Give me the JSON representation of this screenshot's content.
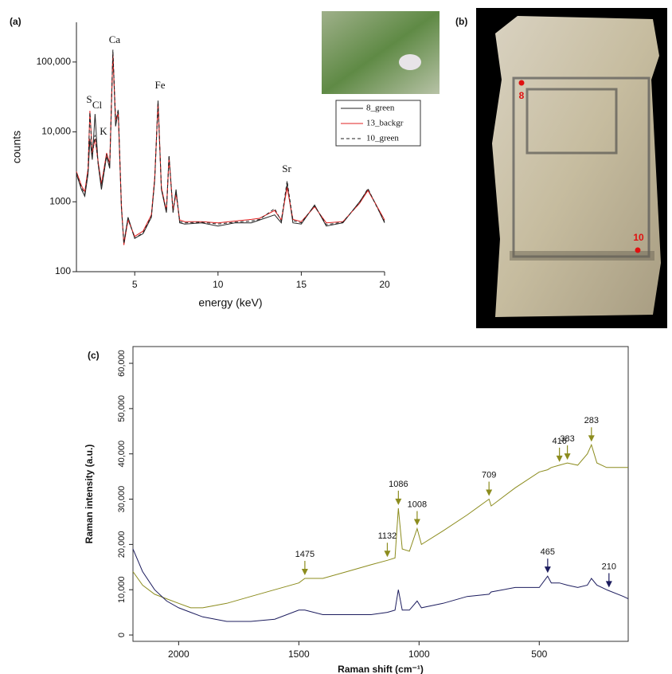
{
  "labels": {
    "a": "(a)",
    "b": "(b)",
    "c": "(c)"
  },
  "photo_markers": [
    "8",
    "10"
  ],
  "chart_data": [
    {
      "type": "line",
      "ylog": true,
      "xlabel": "energy (keV)",
      "ylabel": "counts",
      "xlim": [
        1.5,
        20
      ],
      "ylim": [
        100,
        370000
      ],
      "xticks": [
        5,
        10,
        15,
        20
      ],
      "yticks": [
        100,
        1000,
        {
          "value": 10000,
          "label": "10,000"
        },
        {
          "value": 100000,
          "label": "100,000"
        }
      ],
      "annotations": [
        "S",
        "Cl",
        "K",
        "Ca",
        "Fe",
        "Sr"
      ],
      "legend": "upper right",
      "x": [
        1.5,
        1.8,
        2.0,
        2.2,
        2.31,
        2.45,
        2.62,
        2.8,
        3.0,
        3.31,
        3.5,
        3.69,
        3.85,
        4.01,
        4.2,
        4.35,
        4.6,
        5.0,
        5.5,
        6.0,
        6.2,
        6.4,
        6.6,
        6.9,
        7.06,
        7.3,
        7.48,
        7.7,
        8.0,
        9.0,
        10.0,
        11.0,
        12.0,
        12.5,
        13.4,
        13.8,
        14.15,
        14.5,
        15.0,
        15.8,
        16.5,
        17.5,
        18.5,
        19.0,
        19.5,
        20.0
      ],
      "series": [
        {
          "name": "8_green",
          "color": "#222222",
          "dash": false,
          "values": [
            2500,
            1500,
            1200,
            2500,
            8000,
            4000,
            18000,
            3500,
            1500,
            4500,
            3000,
            140000,
            12000,
            20000,
            800,
            260,
            600,
            300,
            350,
            600,
            2000,
            28000,
            1500,
            700,
            4500,
            700,
            1500,
            500,
            480,
            500,
            450,
            500,
            500,
            550,
            650,
            500,
            1800,
            500,
            480,
            900,
            450,
            500,
            1000,
            1500,
            900,
            500
          ]
        },
        {
          "name": "13_backgr",
          "color": "#e02020",
          "dash": false,
          "values": [
            2700,
            1700,
            1400,
            3000,
            20000,
            5000,
            8000,
            3800,
            1800,
            5000,
            3500,
            130000,
            15000,
            18000,
            900,
            240,
            550,
            320,
            380,
            650,
            2200,
            26000,
            1600,
            750,
            4300,
            750,
            1300,
            550,
            520,
            520,
            500,
            530,
            560,
            580,
            750,
            550,
            1600,
            560,
            520,
            850,
            500,
            520,
            950,
            1450,
            900,
            550
          ]
        },
        {
          "name": "10_green",
          "color": "#222222",
          "dash": true,
          "values": [
            2600,
            1600,
            1300,
            2800,
            19000,
            4500,
            9000,
            3600,
            1700,
            4800,
            3200,
            150000,
            14000,
            21000,
            850,
            250,
            580,
            300,
            360,
            620,
            2100,
            27000,
            1550,
            720,
            4600,
            720,
            1400,
            520,
            500,
            510,
            480,
            510,
            530,
            560,
            800,
            530,
            2000,
            540,
            500,
            880,
            470,
            510,
            980,
            1550,
            880,
            520
          ]
        }
      ]
    },
    {
      "type": "line",
      "ylog": false,
      "xlabel": "Raman shift (cm⁻¹)",
      "ylabel": "Raman intensity (a.u.)",
      "xlim": [
        2190,
        130
      ],
      "ylim": [
        -1400,
        63700
      ],
      "xticks": [
        2000,
        1500,
        1000,
        500
      ],
      "yticks": [
        0,
        {
          "value": 10000,
          "label": "10,000"
        },
        {
          "value": 20000,
          "label": "20,000"
        },
        {
          "value": 30000,
          "label": "30,000"
        },
        {
          "value": 40000,
          "label": "40,000"
        },
        {
          "value": 50000,
          "label": "50,000"
        },
        {
          "value": 60000,
          "label": "60,000"
        }
      ],
      "x": [
        2190,
        2150,
        2100,
        2050,
        2000,
        1950,
        1900,
        1800,
        1700,
        1600,
        1500,
        1475,
        1400,
        1300,
        1200,
        1132,
        1100,
        1086,
        1070,
        1040,
        1008,
        990,
        900,
        800,
        709,
        700,
        600,
        500,
        465,
        450,
        416,
        383,
        340,
        300,
        283,
        260,
        220,
        150,
        130
      ],
      "series": [
        {
          "color": "#8c8c1e",
          "peaks": [
            1475,
            1132,
            1086,
            1008,
            709,
            416,
            383,
            283
          ],
          "values": [
            14000,
            11000,
            9000,
            8000,
            7000,
            6000,
            6000,
            7000,
            8500,
            10000,
            11500,
            12500,
            12500,
            14000,
            15500,
            16500,
            17000,
            28000,
            19000,
            18500,
            23500,
            20000,
            23000,
            26500,
            30000,
            28500,
            32500,
            36000,
            36500,
            37000,
            37500,
            38000,
            37500,
            40000,
            42000,
            38000,
            37000,
            37000,
            37000
          ]
        },
        {
          "color": "#1c1c5e",
          "peaks": [
            465,
            210
          ],
          "values": [
            19000,
            14000,
            10000,
            7500,
            6000,
            5000,
            4000,
            3000,
            3000,
            3500,
            5500,
            5500,
            4500,
            4500,
            4500,
            5000,
            5500,
            10000,
            5500,
            5500,
            7500,
            6000,
            7000,
            8500,
            9000,
            9500,
            10500,
            10500,
            13000,
            11500,
            11500,
            11000,
            10500,
            11000,
            12500,
            11000,
            10000,
            8500,
            8000
          ]
        }
      ]
    }
  ]
}
